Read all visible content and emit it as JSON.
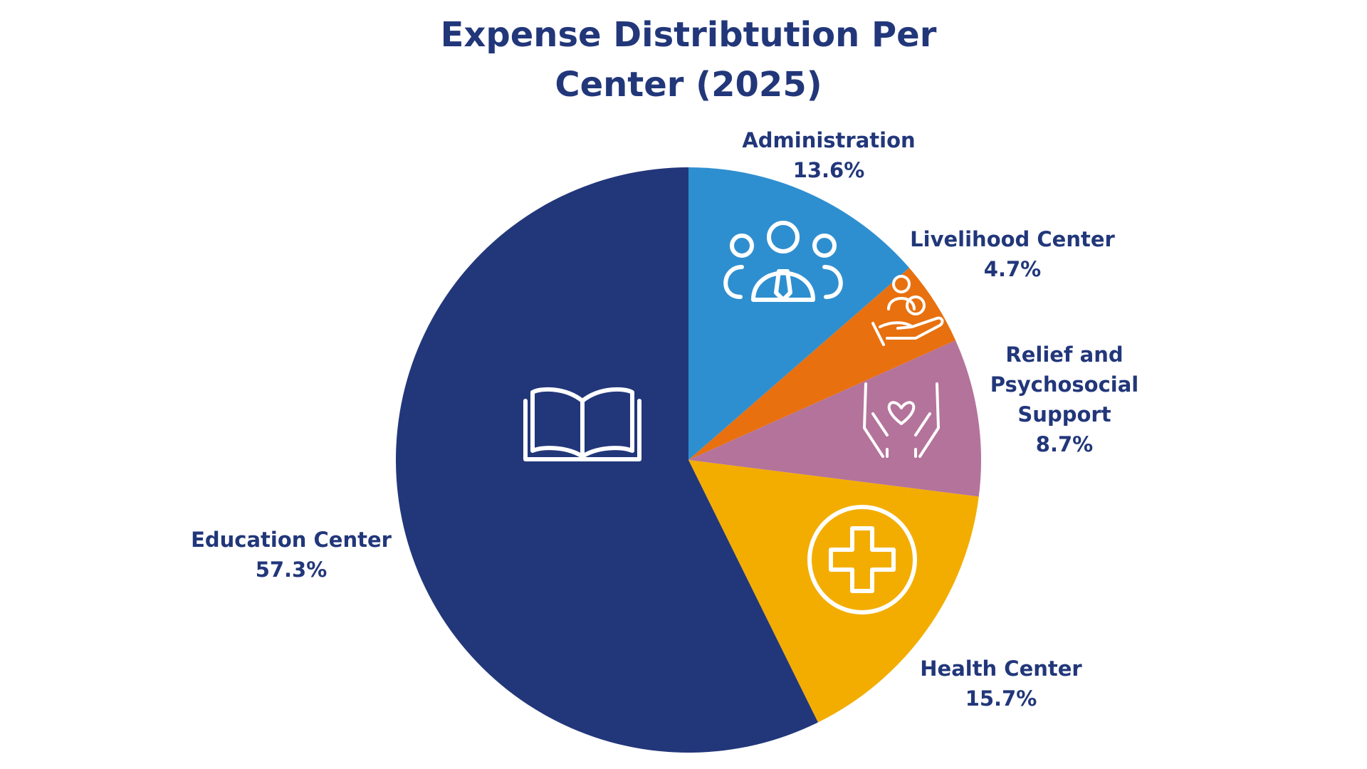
{
  "chart_data": {
    "type": "pie",
    "title": "Expense Distribtution Per Center (2025)",
    "categories": [
      "Administration",
      "Livelihood Center",
      "Relief and Psychosocial Support",
      "Health Center",
      "Education Center"
    ],
    "values": [
      13.6,
      4.7,
      8.7,
      15.7,
      57.3
    ],
    "value_labels": [
      "13.6%",
      "4.7%",
      "8.7%",
      "15.7%",
      "57.3%"
    ],
    "colors": [
      "#2e8fd0",
      "#e8700f",
      "#b4739b",
      "#f3ad00",
      "#22377a"
    ]
  }
}
